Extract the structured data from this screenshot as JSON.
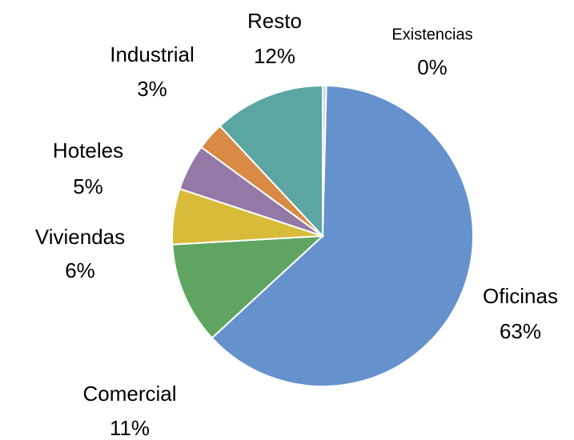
{
  "chart_data": {
    "type": "pie",
    "categories": [
      "Existencias",
      "Oficinas",
      "Comercial",
      "Viviendas",
      "Hoteles",
      "Industrial",
      "Resto"
    ],
    "values": [
      0.4,
      63,
      11,
      6,
      5,
      3,
      12
    ],
    "value_labels": [
      "0%",
      "63%",
      "11%",
      "6%",
      "5%",
      "3%",
      "12%"
    ],
    "colors": [
      "#c9d9ea",
      "#6592cd",
      "#5fa561",
      "#d9bb3a",
      "#9479a7",
      "#d98b45",
      "#5ba6a3"
    ]
  }
}
